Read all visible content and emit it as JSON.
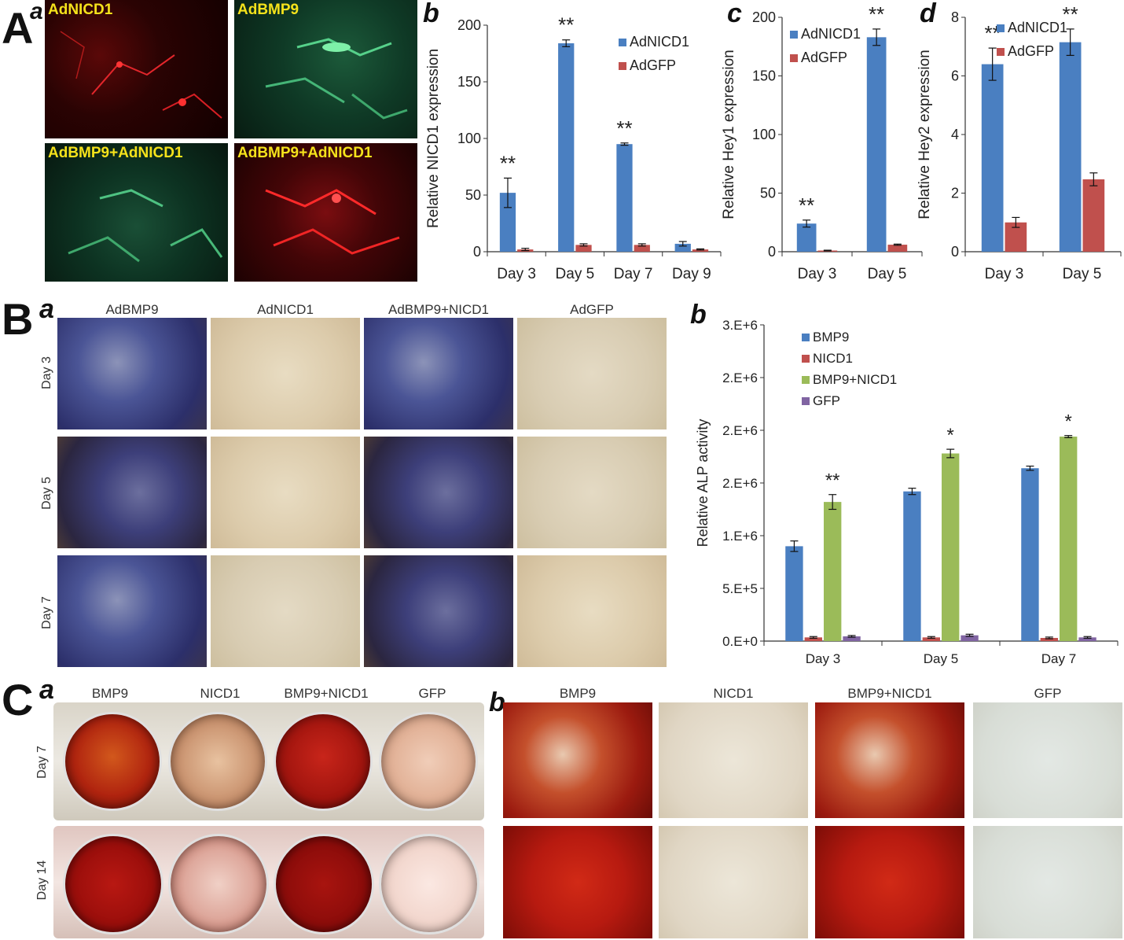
{
  "panels": {
    "A": {
      "letter": "A",
      "sub_a": "a",
      "sub_b": "b",
      "sub_c": "c",
      "sub_d": "d"
    },
    "B": {
      "letter": "B",
      "sub_a": "a",
      "sub_b": "b"
    },
    "C": {
      "letter": "C",
      "sub_a": "a",
      "sub_b": "b"
    }
  },
  "panelA_images": [
    {
      "label": "AdNICD1"
    },
    {
      "label": "AdBMP9"
    },
    {
      "label": "AdBMP9+AdNICD1"
    },
    {
      "label": "AdBMP9+AdNICD1"
    }
  ],
  "panelBa": {
    "columns": [
      "AdBMP9",
      "AdNICD1",
      "AdBMP9+NICD1",
      "AdGFP"
    ],
    "rows": [
      "Day 3",
      "Day 5",
      "Day 7"
    ]
  },
  "panelCa": {
    "columns": [
      "BMP9",
      "NICD1",
      "BMP9+NICD1",
      "GFP"
    ],
    "rows": [
      "Day 7",
      "Day 14"
    ]
  },
  "panelCb": {
    "columns": [
      "BMP9",
      "NICD1",
      "BMP9+NICD1",
      "GFP"
    ]
  },
  "colors": {
    "blue": "#4a7fc1",
    "red": "#c0504d",
    "green": "#9bbb59",
    "purple": "#8064a2"
  },
  "chart_data": [
    {
      "id": "Ab",
      "type": "bar",
      "ylabel": "Relative NICD1 expression",
      "categories": [
        "Day 3",
        "Day 5",
        "Day 7",
        "Day 9"
      ],
      "ylim": [
        0,
        200
      ],
      "yticks": [
        "0",
        "50",
        "100",
        "150",
        "200"
      ],
      "series": [
        {
          "name": "AdNICD1",
          "values": [
            52,
            184,
            95,
            7
          ],
          "errors": [
            13,
            3,
            1,
            2
          ]
        },
        {
          "name": "AdGFP",
          "values": [
            2,
            6,
            6,
            2
          ],
          "errors": [
            1,
            1,
            1,
            0.5
          ]
        }
      ],
      "annotations": [
        "**",
        "**",
        "**",
        ""
      ]
    },
    {
      "id": "Ac",
      "type": "bar",
      "ylabel": "Relative Hey1 expression",
      "categories": [
        "Day 3",
        "Day 5"
      ],
      "ylim": [
        0,
        200
      ],
      "yticks": [
        "0",
        "50",
        "100",
        "150",
        "200"
      ],
      "series": [
        {
          "name": "AdNICD1",
          "values": [
            24,
            183
          ],
          "errors": [
            3,
            7
          ]
        },
        {
          "name": "AdGFP",
          "values": [
            1,
            6
          ],
          "errors": [
            0.3,
            0.5
          ]
        }
      ],
      "annotations": [
        "**",
        "**"
      ]
    },
    {
      "id": "Ad",
      "type": "bar",
      "ylabel": "Relative Hey2 expression",
      "categories": [
        "Day 3",
        "Day 5"
      ],
      "ylim": [
        0,
        8
      ],
      "yticks": [
        "0",
        "2",
        "4",
        "6",
        "8"
      ],
      "series": [
        {
          "name": "AdNICD1",
          "values": [
            6.4,
            7.15
          ],
          "errors": [
            0.55,
            0.45
          ]
        },
        {
          "name": "AdGFP",
          "values": [
            1.0,
            2.47
          ],
          "errors": [
            0.17,
            0.22
          ]
        }
      ],
      "annotations": [
        "**",
        "**"
      ]
    },
    {
      "id": "Bb",
      "type": "bar",
      "ylabel": "Relative ALP activity",
      "categories": [
        "Day 3",
        "Day 5",
        "Day 7"
      ],
      "ylim": [
        0,
        3000000
      ],
      "yticks": [
        "0.E+0",
        "5.E+5",
        "1.E+6",
        "2.E+6",
        "2.E+6",
        "2.E+6",
        "3.E+6"
      ],
      "series": [
        {
          "name": "BMP9",
          "values": [
            900000,
            1420000,
            1640000
          ],
          "errors": [
            50000,
            30000,
            20000
          ]
        },
        {
          "name": "NICD1",
          "values": [
            35000,
            35000,
            30000
          ],
          "errors": [
            8000,
            8000,
            8000
          ]
        },
        {
          "name": "BMP9+NICD1",
          "values": [
            1320000,
            1780000,
            1940000
          ],
          "errors": [
            70000,
            40000,
            10000
          ]
        },
        {
          "name": "GFP",
          "values": [
            45000,
            55000,
            35000
          ],
          "errors": [
            8000,
            10000,
            8000
          ]
        }
      ],
      "annotations": [
        "**",
        "*",
        "*"
      ]
    }
  ]
}
